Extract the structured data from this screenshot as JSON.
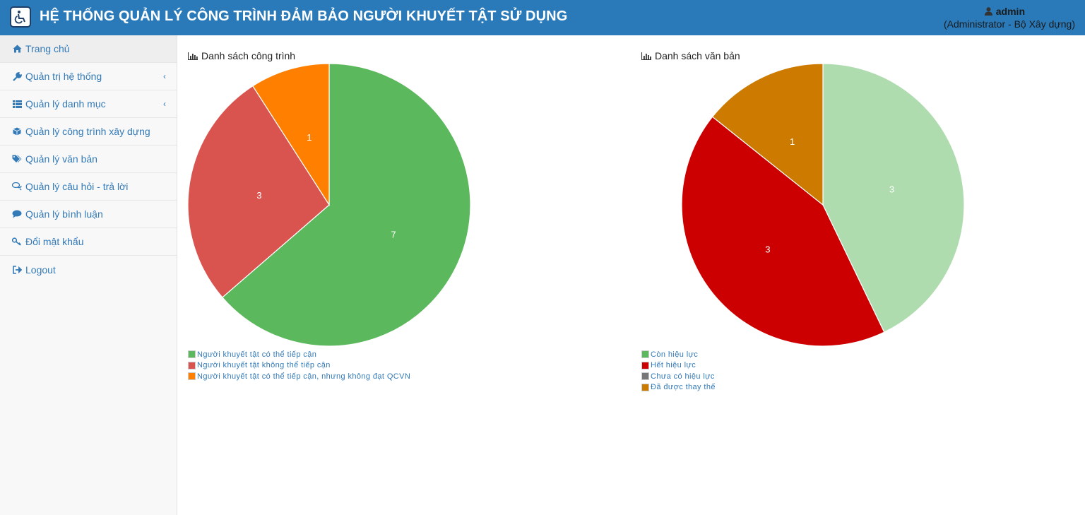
{
  "header": {
    "title": "HỆ THỐNG QUẢN LÝ CÔNG TRÌNH ĐẢM BẢO NGƯỜI KHUYẾT TẬT SỬ DỤNG",
    "user_name": "admin",
    "user_role": "(Administrator - Bộ Xây dựng)",
    "logo_icon": "wheelchair-icon",
    "bg_color": "#2a7ab9"
  },
  "sidebar": {
    "items": [
      {
        "label": "Trang chủ",
        "icon": "home-icon",
        "active": true
      },
      {
        "label": "Quản trị hệ thống",
        "icon": "wrench-icon",
        "caret": "‹"
      },
      {
        "label": "Quản lý danh mục",
        "icon": "list-icon",
        "caret": "‹"
      },
      {
        "label": "Quản lý công trình xây dựng",
        "icon": "cube-icon"
      },
      {
        "label": "Quản lý văn bản",
        "icon": "tags-icon"
      },
      {
        "label": "Quản lý câu hỏi - trả lời",
        "icon": "comments-icon"
      },
      {
        "label": "Quản lý bình luận",
        "icon": "comment-icon"
      },
      {
        "label": "Đổi mật khẩu",
        "icon": "key-icon"
      },
      {
        "label": "Logout",
        "icon": "sign-out-icon"
      }
    ]
  },
  "main": {
    "panels": [
      {
        "title": "Danh sách công trình",
        "icon": "bar-chart-icon"
      },
      {
        "title": "Danh sách văn bản",
        "icon": "bar-chart-icon"
      }
    ]
  },
  "chart_data": [
    {
      "type": "pie",
      "title": "Danh sách công trình",
      "categories": [
        "Người khuyết tật có thể tiếp cận",
        "Người khuyết tật không thể tiếp cận",
        "Người khuyết tật có thể tiếp cận, nhưng không đạt QCVN"
      ],
      "values": [
        7,
        3,
        1
      ],
      "colors": [
        "#5cb85c",
        "#d9534f",
        "#ff8000"
      ],
      "data_labels": [
        "7",
        "3",
        "1"
      ],
      "legend": "bottom-left"
    },
    {
      "type": "pie",
      "title": "Danh sách văn bản",
      "categories": [
        "Còn hiệu lực",
        "Hết hiệu lực",
        "Chưa có hiệu lực",
        "Đã được thay thế"
      ],
      "values": [
        3,
        3,
        0,
        1
      ],
      "colors": [
        "#afdcaf",
        "#cc0000",
        "#777777",
        "#cc7a00"
      ],
      "legend_colors": [
        "#5cb85c",
        "#cc0000",
        "#777777",
        "#cc7a00"
      ],
      "data_labels": [
        "3",
        "3",
        "",
        "1"
      ],
      "legend": "bottom-left"
    }
  ]
}
